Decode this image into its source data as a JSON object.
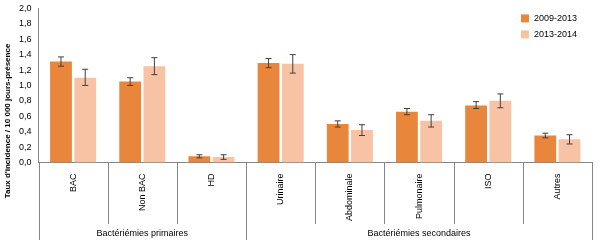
{
  "chart_data": {
    "type": "bar",
    "y_label": "Taux d'incidence / 10 000 jours-présence",
    "categories": [
      "BAC",
      "Non BAC",
      "HD",
      "Urinaire",
      "Abdominale",
      "Pulmonaire",
      "ISO",
      "Autres"
    ],
    "groups": [
      {
        "label": "Bactériémies primaires",
        "categories": [
          "BAC",
          "Non BAC",
          "HD"
        ]
      },
      {
        "label": "Bactériémies secondaires",
        "categories": [
          "Urinaire",
          "Abdominale",
          "Pulmonaire",
          "ISO",
          "Autres"
        ]
      }
    ],
    "series": [
      {
        "name": "2009-2013",
        "color": "#E8873C",
        "values": [
          1.31,
          1.05,
          0.08,
          1.29,
          0.5,
          0.66,
          0.74,
          0.35
        ],
        "error_low": [
          1.25,
          1.0,
          0.06,
          1.23,
          0.46,
          0.62,
          0.7,
          0.32
        ],
        "error_high": [
          1.37,
          1.1,
          0.1,
          1.35,
          0.54,
          0.7,
          0.79,
          0.38
        ]
      },
      {
        "name": "2013-2014",
        "color": "#F8C3A4",
        "values": [
          1.1,
          1.25,
          0.07,
          1.28,
          0.42,
          0.54,
          0.8,
          0.3
        ],
        "error_low": [
          1.0,
          1.14,
          0.04,
          1.16,
          0.35,
          0.46,
          0.71,
          0.24
        ],
        "error_high": [
          1.21,
          1.36,
          0.1,
          1.4,
          0.49,
          0.62,
          0.89,
          0.36
        ]
      }
    ],
    "ylim": [
      0,
      2
    ],
    "yticks": [
      {
        "value": 0,
        "label": "0,0"
      },
      {
        "value": 0.2,
        "label": "0,2"
      },
      {
        "value": 0.4,
        "label": "0,4"
      },
      {
        "value": 0.6,
        "label": "0,6"
      },
      {
        "value": 0.8,
        "label": "0,8"
      },
      {
        "value": 1,
        "label": "1,0"
      },
      {
        "value": 1.2,
        "label": "1,2"
      },
      {
        "value": 1.4,
        "label": "1,4"
      },
      {
        "value": 1.6,
        "label": "1,6"
      },
      {
        "value": 1.8,
        "label": "1,8"
      },
      {
        "value": 2,
        "label": "2,0"
      }
    ],
    "grid": false,
    "legend": "upper right"
  }
}
